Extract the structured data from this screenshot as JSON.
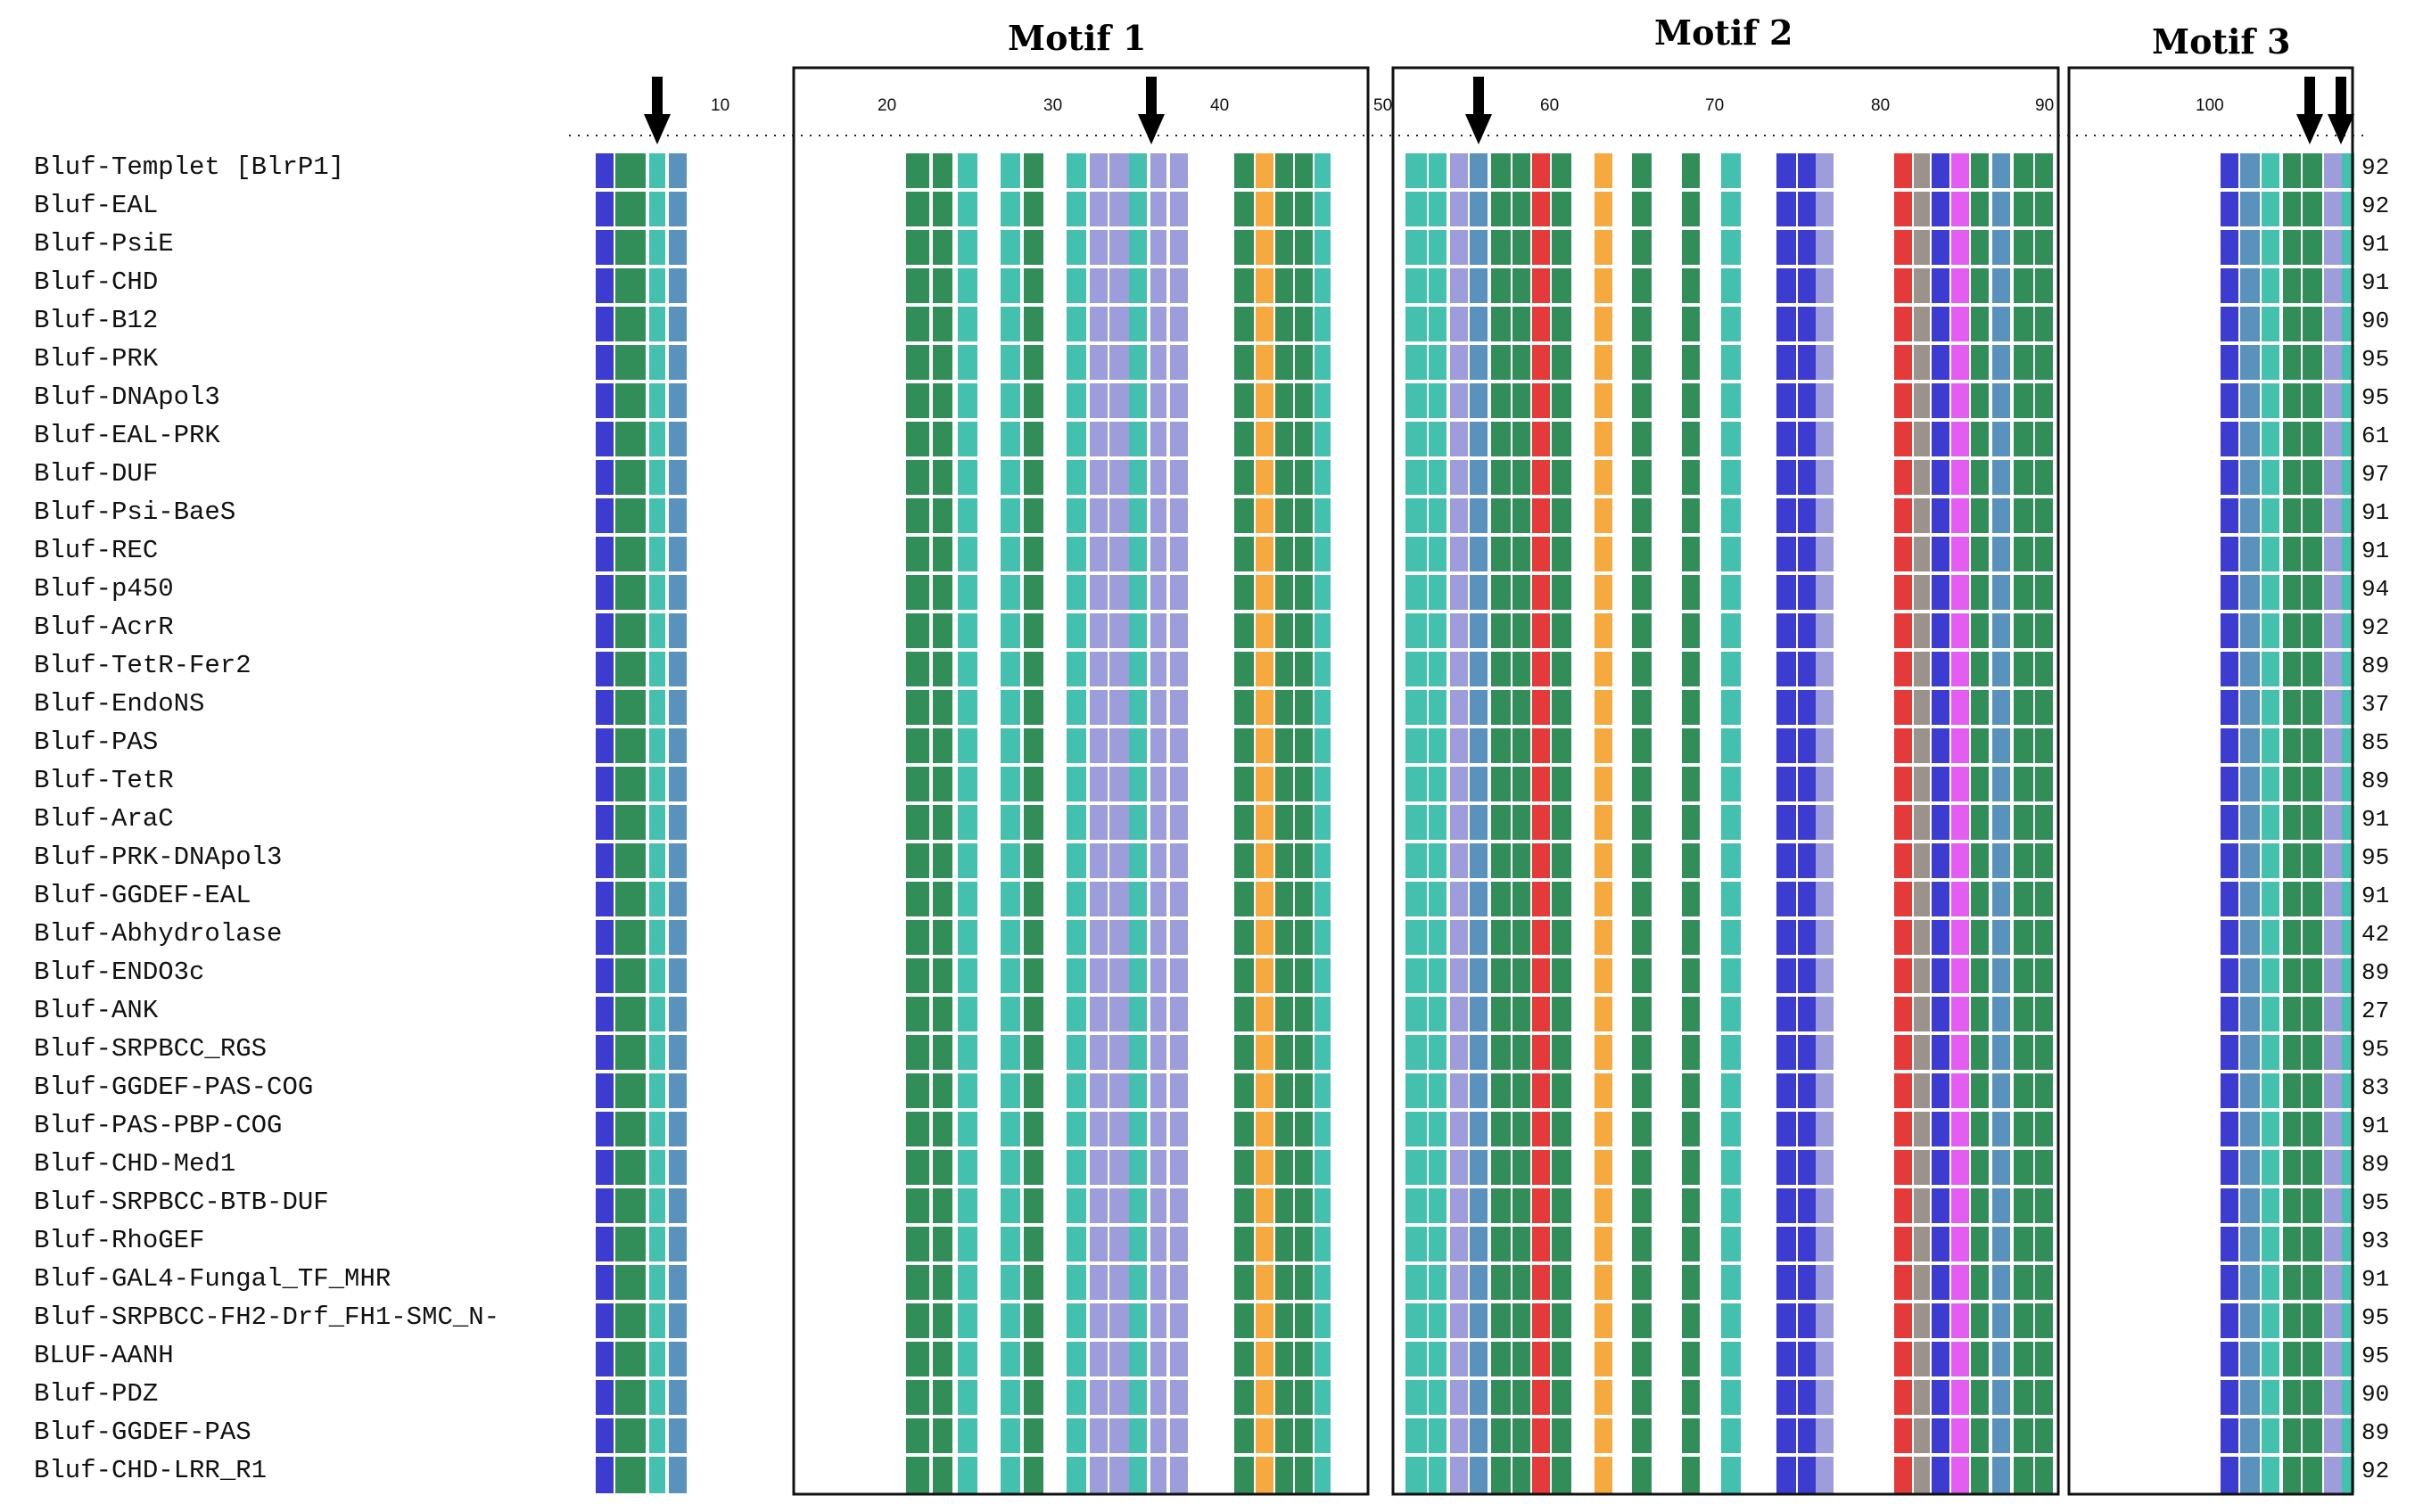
{
  "motifs": {
    "motif1": "Motif 1",
    "motif2": "Motif 2",
    "motif3": "Motif 3"
  },
  "ruler_ticks": [
    "10",
    "20",
    "30",
    "40",
    "50",
    "60",
    "70",
    "80",
    "90",
    "100"
  ],
  "sequences": [
    {
      "name": "Bluf-Templet [BlrP1]",
      "count": "92"
    },
    {
      "name": "Bluf-EAL",
      "count": "92"
    },
    {
      "name": "Bluf-PsiE",
      "count": "91"
    },
    {
      "name": "Bluf-CHD",
      "count": "91"
    },
    {
      "name": "Bluf-B12",
      "count": "90"
    },
    {
      "name": "Bluf-PRK",
      "count": "95"
    },
    {
      "name": "Bluf-DNApol3",
      "count": "95"
    },
    {
      "name": "Bluf-EAL-PRK",
      "count": "61"
    },
    {
      "name": "Bluf-DUF",
      "count": "97"
    },
    {
      "name": "Bluf-Psi-BaeS",
      "count": "91"
    },
    {
      "name": "Bluf-REC",
      "count": "91"
    },
    {
      "name": "Bluf-p450",
      "count": "94"
    },
    {
      "name": "Bluf-AcrR",
      "count": "92"
    },
    {
      "name": "Bluf-TetR-Fer2",
      "count": "89"
    },
    {
      "name": "Bluf-EndoNS",
      "count": "37"
    },
    {
      "name": "Bluf-PAS",
      "count": "85"
    },
    {
      "name": "Bluf-TetR",
      "count": "89"
    },
    {
      "name": "Bluf-AraC",
      "count": "91"
    },
    {
      "name": "Bluf-PRK-DNApol3",
      "count": "95"
    },
    {
      "name": "Bluf-GGDEF-EAL",
      "count": "91"
    },
    {
      "name": "Bluf-Abhydrolase",
      "count": "42"
    },
    {
      "name": "Bluf-ENDO3c",
      "count": "89"
    },
    {
      "name": "Bluf-ANK",
      "count": "27"
    },
    {
      "name": "Bluf-SRPBCC_RGS",
      "count": "95"
    },
    {
      "name": "Bluf-GGDEF-PAS-COG",
      "count": "83"
    },
    {
      "name": "Bluf-PAS-PBP-COG",
      "count": "91"
    },
    {
      "name": "Bluf-CHD-Med1",
      "count": "89"
    },
    {
      "name": "Bluf-SRPBCC-BTB-DUF",
      "count": "95"
    },
    {
      "name": "Bluf-RhoGEF",
      "count": "93"
    },
    {
      "name": "Bluf-GAL4-Fungal_TF_MHR",
      "count": "91"
    },
    {
      "name": "Bluf-SRPBCC-FH2-Drf_FH1-SMC_N-",
      "count": "95"
    },
    {
      "name": "BLUF-AANH",
      "count": "95"
    },
    {
      "name": "Bluf-PDZ",
      "count": "90"
    },
    {
      "name": "Bluf-GGDEF-PAS",
      "count": "89"
    },
    {
      "name": "Bluf-CHD-LRR_R1",
      "count": "92"
    }
  ],
  "colors": {
    "green": "#0e7a3c",
    "teal": "#22b5a0",
    "steel": "#3c7fb2",
    "blue": "#1a1ac8",
    "lavender": "#8c8cd6",
    "orange": "#f39a1d",
    "red": "#e01818",
    "magenta": "#e040f0",
    "gray": "#8a7f78"
  }
}
